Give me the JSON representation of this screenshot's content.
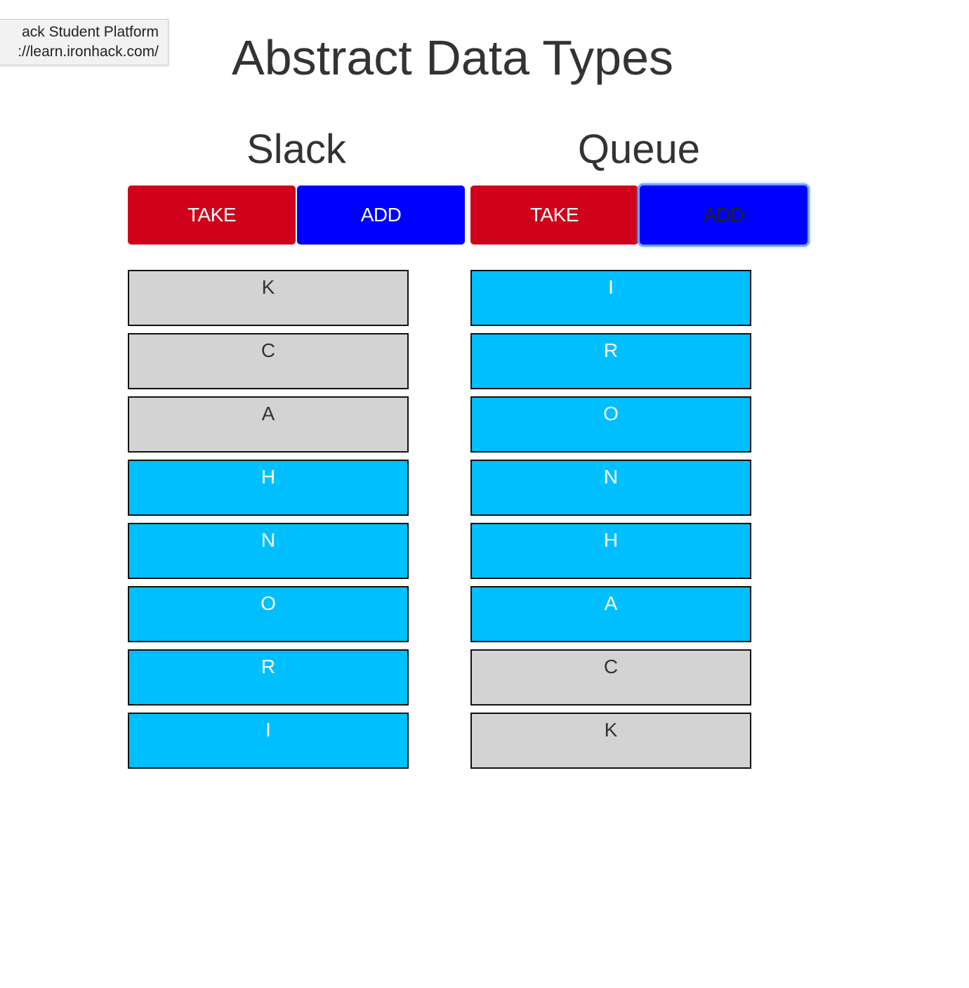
{
  "tooltip": {
    "line1": "ack Student Platform",
    "line2": "://learn.ironhack.com/"
  },
  "title": "Abstract Data Types",
  "stack": {
    "title": "Slack",
    "take_label": "TAKE",
    "add_label": "ADD",
    "items": [
      {
        "letter": "K",
        "state": "empty"
      },
      {
        "letter": "C",
        "state": "empty"
      },
      {
        "letter": "A",
        "state": "empty"
      },
      {
        "letter": "H",
        "state": "filled"
      },
      {
        "letter": "N",
        "state": "filled"
      },
      {
        "letter": "O",
        "state": "filled"
      },
      {
        "letter": "R",
        "state": "filled"
      },
      {
        "letter": "I",
        "state": "filled"
      }
    ]
  },
  "queue": {
    "title": "Queue",
    "take_label": "TAKE",
    "add_label": "ADD",
    "items": [
      {
        "letter": "I",
        "state": "filled"
      },
      {
        "letter": "R",
        "state": "filled"
      },
      {
        "letter": "O",
        "state": "filled"
      },
      {
        "letter": "N",
        "state": "filled"
      },
      {
        "letter": "H",
        "state": "filled"
      },
      {
        "letter": "A",
        "state": "filled"
      },
      {
        "letter": "C",
        "state": "empty"
      },
      {
        "letter": "K",
        "state": "empty"
      }
    ]
  },
  "colors": {
    "take": "#d0021b",
    "add": "#0000ff",
    "filled": "#00bfff",
    "empty": "#d3d3d3"
  }
}
